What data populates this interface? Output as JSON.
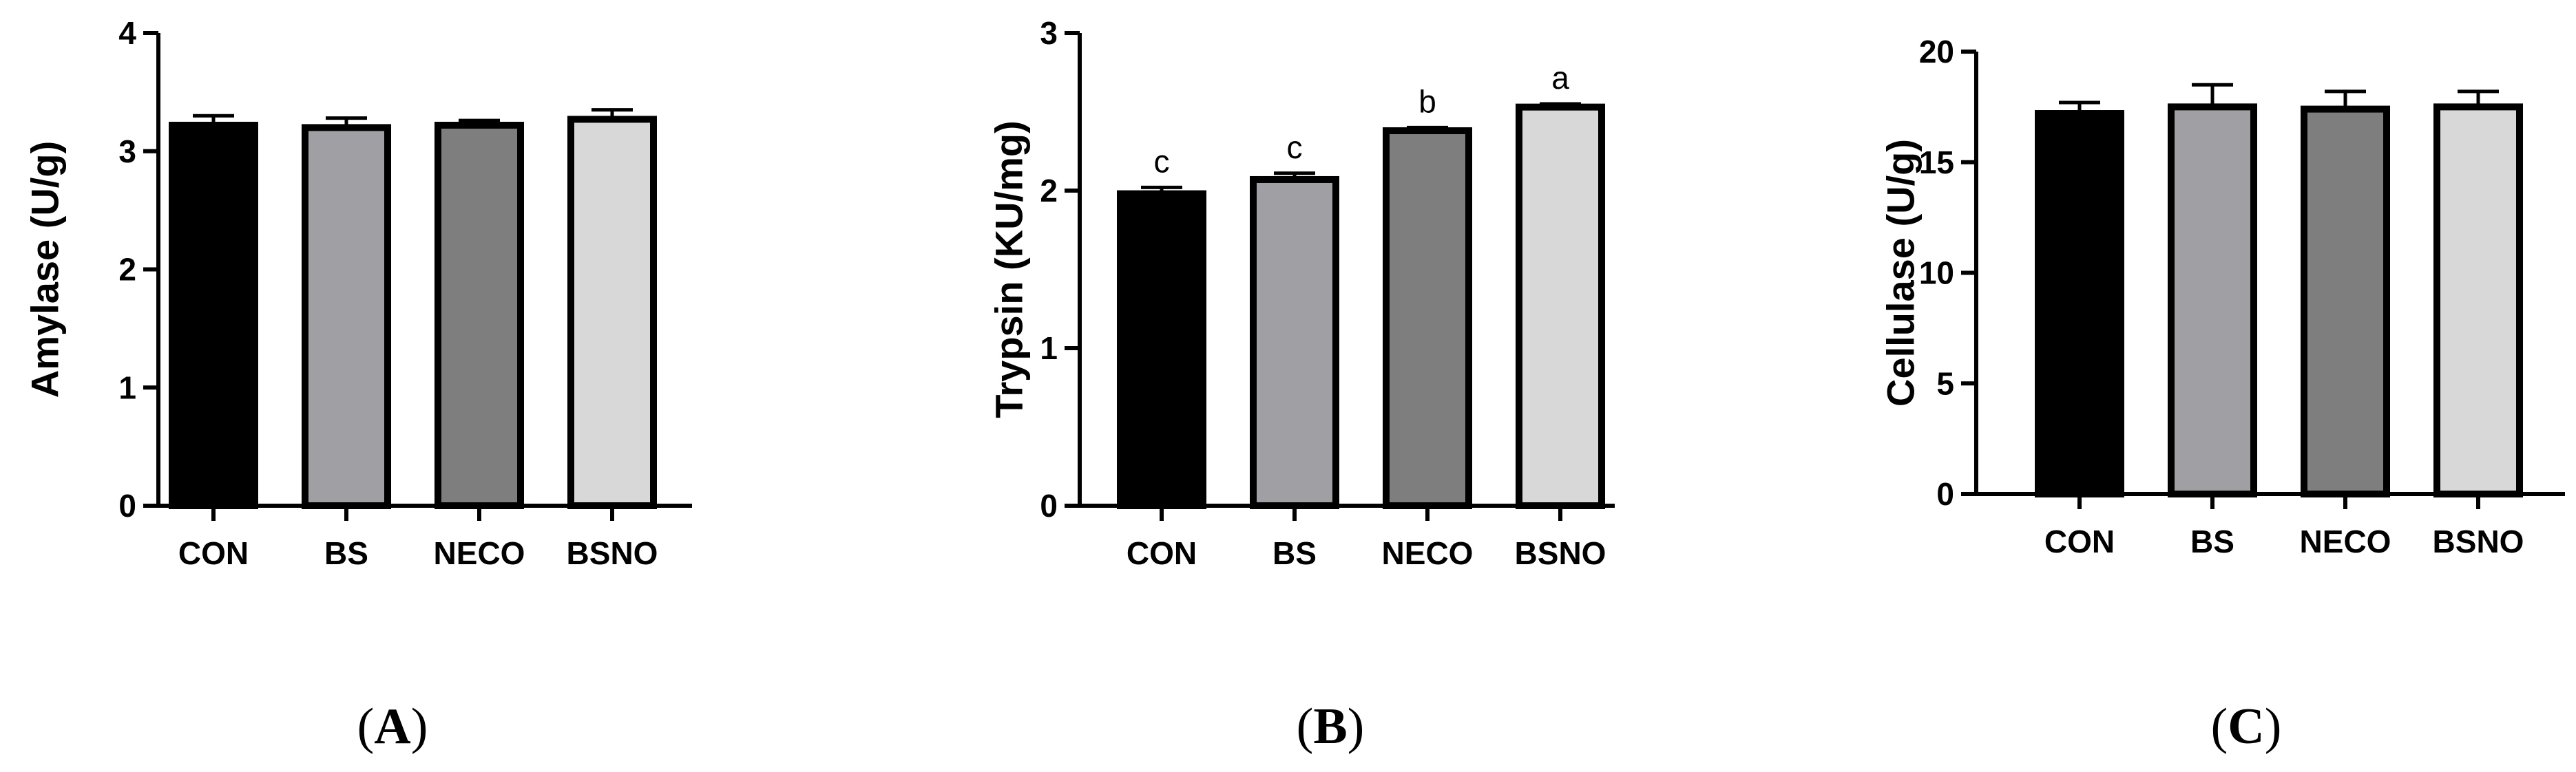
{
  "chart_data": [
    {
      "type": "bar",
      "panel": "A",
      "categories": [
        "CON",
        "BS",
        "NECO",
        "BSNO"
      ],
      "values": [
        3.22,
        3.2,
        3.22,
        3.27
      ],
      "errors": [
        0.08,
        0.08,
        0.04,
        0.08
      ],
      "letters": [],
      "ylabel": "Amylase (U/g)",
      "xlabel": "",
      "ylim": [
        0,
        4
      ],
      "yticks": [
        0,
        1,
        2,
        3,
        4
      ],
      "colors": [
        "#000000",
        "#a0a0a4",
        "#7e7e7e",
        "#d8d8d8"
      ]
    },
    {
      "type": "bar",
      "panel": "B",
      "categories": [
        "CON",
        "BS",
        "NECO",
        "BSNO"
      ],
      "values": [
        1.98,
        2.07,
        2.38,
        2.53
      ],
      "errors": [
        0.04,
        0.04,
        0.02,
        0.02
      ],
      "letters": [
        "c",
        "c",
        "b",
        "a"
      ],
      "ylabel": "Trypsin (KU/mg)",
      "xlabel": "",
      "ylim": [
        0,
        3
      ],
      "yticks": [
        0,
        1,
        2,
        3
      ],
      "colors": [
        "#000000",
        "#a0a0a4",
        "#7e7e7e",
        "#d8d8d8"
      ]
    },
    {
      "type": "bar",
      "panel": "C",
      "categories": [
        "CON",
        "BS",
        "NECO",
        "BSNO"
      ],
      "values": [
        17.2,
        17.5,
        17.4,
        17.5
      ],
      "errors": [
        0.5,
        1.0,
        0.8,
        0.7
      ],
      "letters": [],
      "ylabel": "Cellulase (U/g)",
      "xlabel": "",
      "ylim": [
        0,
        20
      ],
      "yticks": [
        0,
        5,
        10,
        15,
        20
      ],
      "colors": [
        "#000000",
        "#a0a0a4",
        "#7e7e7e",
        "#d8d8d8"
      ]
    }
  ],
  "panel_labels": [
    "A",
    "B",
    "C"
  ]
}
